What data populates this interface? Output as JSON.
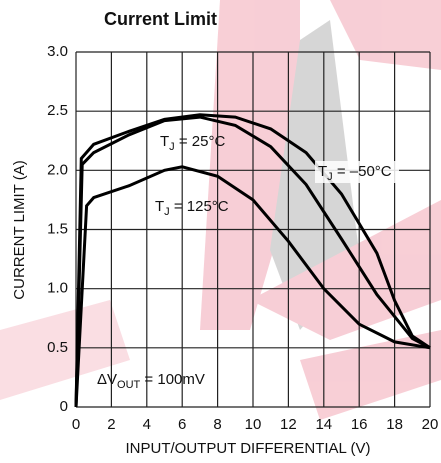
{
  "chart_data": {
    "type": "line",
    "title": "Current Limit",
    "x_label": "INPUT/OUTPUT DIFFERENTIAL (V)",
    "y_label": "CURRENT LIMIT (A)",
    "xlim": [
      0,
      20
    ],
    "ylim": [
      0,
      3
    ],
    "xticks": [
      0,
      2,
      4,
      6,
      8,
      10,
      12,
      14,
      16,
      18,
      20
    ],
    "yticks": [
      0,
      0.5,
      {
        "value": 1,
        "label": "1.0"
      },
      1.5,
      {
        "value": 2,
        "label": "2.0"
      },
      2.5,
      {
        "value": 3,
        "label": "3.0"
      }
    ],
    "grid": true,
    "series": [
      {
        "color": "#000000",
        "x": [
          0,
          0.3,
          1,
          3,
          5,
          7,
          9,
          11,
          13,
          15,
          17,
          18,
          19,
          20
        ],
        "values": [
          0,
          2.1,
          2.22,
          2.33,
          2.43,
          2.47,
          2.45,
          2.35,
          2.15,
          1.8,
          1.3,
          0.9,
          0.6,
          0.5
        ]
      },
      {
        "color": "#000000",
        "x": [
          0,
          0.35,
          1,
          3,
          5,
          7,
          9,
          11,
          13,
          15,
          17,
          19,
          20
        ],
        "values": [
          0,
          2.05,
          2.15,
          2.3,
          2.42,
          2.45,
          2.38,
          2.2,
          1.88,
          1.42,
          0.95,
          0.58,
          0.5
        ]
      },
      {
        "color": "#000000",
        "x": [
          0,
          0.6,
          1,
          3,
          5,
          6,
          8,
          10,
          12,
          14,
          16,
          18,
          20
        ],
        "values": [
          0,
          1.7,
          1.77,
          1.87,
          2.0,
          2.03,
          1.95,
          1.75,
          1.4,
          1.0,
          0.7,
          0.55,
          0.5
        ]
      }
    ],
    "annotations": [
      {
        "text": "T",
        "sub": "J",
        "rest": " = 25°C"
      },
      {
        "text": "T",
        "sub": "J",
        "rest": " = –50°C"
      },
      {
        "text": "T",
        "sub": "J",
        "rest": " = 125°C"
      },
      {
        "text": "ΔV",
        "sub": "OUT",
        "rest": " = 100mV"
      }
    ]
  }
}
